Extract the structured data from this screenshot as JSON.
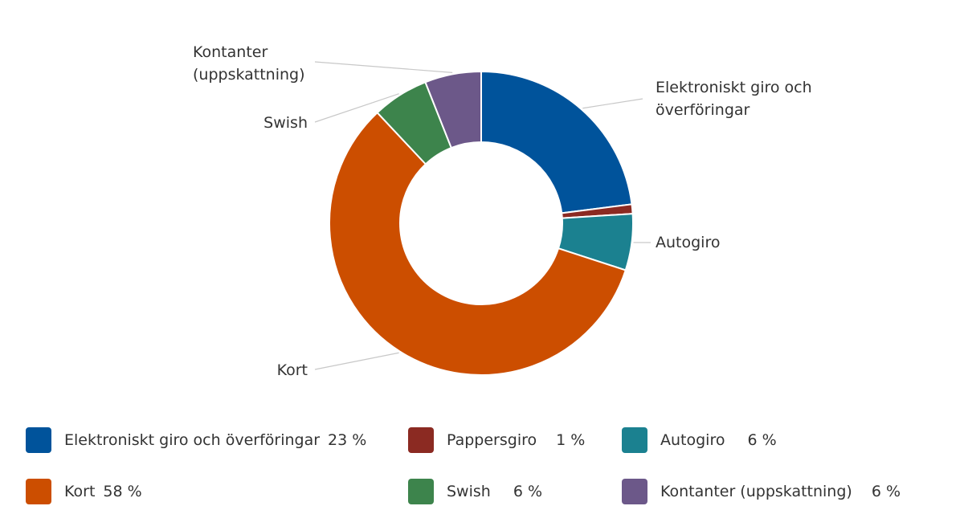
{
  "chart_data": {
    "type": "pie",
    "variant": "donut",
    "title": "",
    "unit": "%",
    "categories": [
      "Elektroniskt giro och överföringar",
      "Pappersgiro",
      "Autogiro",
      "Kort",
      "Swish",
      "Kontanter (uppskattning)"
    ],
    "values": [
      23,
      1,
      6,
      58,
      6,
      6
    ],
    "value_labels": [
      "23 %",
      "1 %",
      "6 %",
      "58 %",
      "6 %",
      "6 %"
    ],
    "colors": [
      "#00539b",
      "#8b2a22",
      "#1b8190",
      "#cc4e00",
      "#3d844c",
      "#6c5889"
    ],
    "callouts": [
      {
        "lines": [
          "Elektroniskt giro och",
          "överföringar"
        ]
      },
      {
        "lines": []
      },
      {
        "lines": [
          "Autogiro"
        ]
      },
      {
        "lines": [
          "Kort"
        ]
      },
      {
        "lines": [
          "Swish"
        ]
      },
      {
        "lines": [
          "Kontanter",
          "(uppskattning)"
        ]
      }
    ],
    "legend_placement": "bottom"
  }
}
